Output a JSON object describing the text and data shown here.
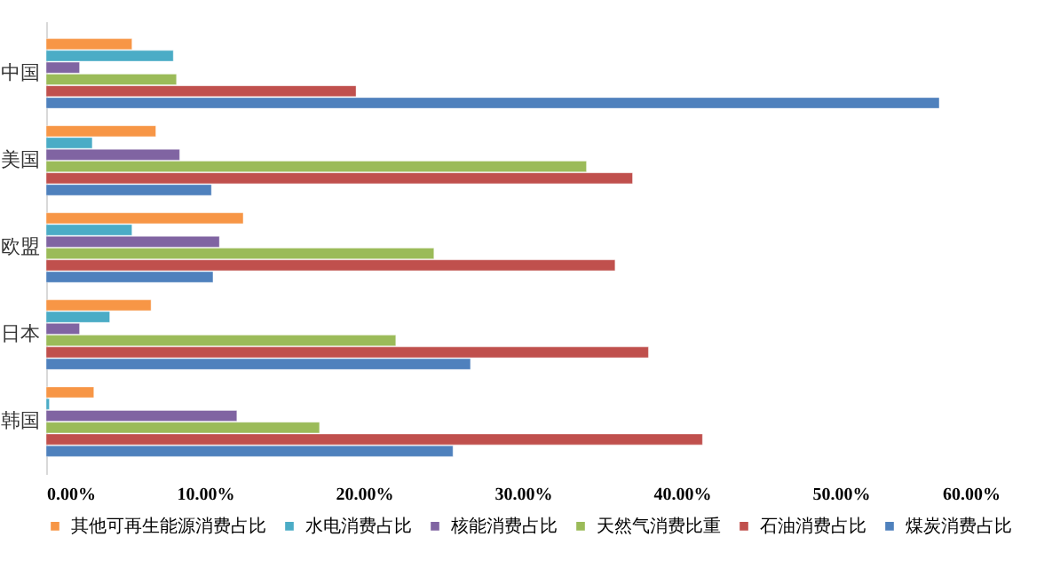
{
  "chart_data": {
    "type": "bar",
    "orientation": "horizontal",
    "categories": [
      "中国",
      "美国",
      "欧盟",
      "日本",
      "韩国"
    ],
    "series": [
      {
        "name": "其他可再生能源消费占比",
        "color": "#f79646",
        "values": [
          5.4,
          6.9,
          12.4,
          6.6,
          3.0
        ]
      },
      {
        "name": "水电消费占比",
        "color": "#4bacc6",
        "values": [
          8.0,
          2.9,
          5.4,
          4.0,
          0.2
        ]
      },
      {
        "name": "核能消费占比",
        "color": "#8064a2",
        "values": [
          2.1,
          8.4,
          10.9,
          2.1,
          12.0
        ]
      },
      {
        "name": "天然气消费比重",
        "color": "#9bbb59",
        "values": [
          8.2,
          34.0,
          24.4,
          22.0,
          17.2
        ]
      },
      {
        "name": "石油消费占比",
        "color": "#c0504d",
        "values": [
          19.5,
          36.9,
          35.8,
          37.9,
          41.3
        ]
      },
      {
        "name": "煤炭消费占比",
        "color": "#4f81bd",
        "values": [
          56.2,
          10.4,
          10.5,
          26.7,
          25.6
        ]
      }
    ],
    "xlim": [
      0,
      60
    ],
    "xticks": [
      {
        "value": 0,
        "label": "0.00%"
      },
      {
        "value": 10,
        "label": "10.00%"
      },
      {
        "value": 20,
        "label": "20.00%"
      },
      {
        "value": 30,
        "label": "30.00%"
      },
      {
        "value": 40,
        "label": "40.00%"
      },
      {
        "value": 50,
        "label": "50.00%"
      },
      {
        "value": 60,
        "label": "60.00%"
      }
    ],
    "grid": false,
    "legend": "bottom"
  }
}
